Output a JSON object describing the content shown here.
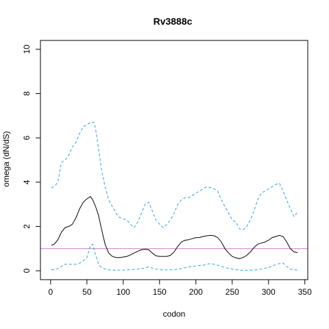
{
  "chart_data": {
    "type": "line",
    "title": "Rv3888c",
    "xlabel": "codon",
    "ylabel": "omega (dN/dS)",
    "xlim": [
      -14,
      354
    ],
    "ylim": [
      -0.4,
      10.4
    ],
    "xticks": [
      0,
      50,
      100,
      150,
      200,
      250,
      300,
      350
    ],
    "yticks": [
      0,
      2,
      4,
      6,
      8,
      10
    ],
    "grid": false,
    "legend": "none",
    "reference_line": {
      "y": 1,
      "color": "#cc79c8"
    },
    "series": [
      {
        "style": "solid",
        "color": "#000000",
        "x": [
          1,
          5,
          10,
          15,
          20,
          25,
          30,
          35,
          40,
          45,
          50,
          55,
          58,
          62,
          66,
          70,
          75,
          80,
          85,
          90,
          95,
          100,
          105,
          110,
          115,
          120,
          125,
          130,
          135,
          140,
          145,
          150,
          155,
          160,
          165,
          170,
          175,
          180,
          185,
          190,
          195,
          200,
          205,
          210,
          215,
          220,
          225,
          230,
          235,
          240,
          245,
          250,
          255,
          260,
          265,
          270,
          275,
          280,
          285,
          290,
          295,
          300,
          305,
          310,
          315,
          320,
          325,
          330,
          335,
          340
        ],
        "y": [
          1.15,
          1.2,
          1.4,
          1.75,
          1.95,
          2.0,
          2.1,
          2.4,
          2.8,
          3.1,
          3.25,
          3.35,
          3.2,
          2.9,
          2.5,
          1.9,
          1.2,
          0.8,
          0.65,
          0.6,
          0.6,
          0.62,
          0.65,
          0.72,
          0.8,
          0.88,
          0.95,
          0.97,
          0.95,
          0.8,
          0.68,
          0.65,
          0.65,
          0.65,
          0.7,
          0.85,
          1.1,
          1.3,
          1.38,
          1.4,
          1.45,
          1.5,
          1.5,
          1.55,
          1.58,
          1.6,
          1.58,
          1.5,
          1.3,
          1.0,
          0.8,
          0.65,
          0.58,
          0.55,
          0.6,
          0.7,
          0.85,
          1.05,
          1.2,
          1.25,
          1.3,
          1.38,
          1.5,
          1.55,
          1.6,
          1.55,
          1.3,
          1.0,
          0.85,
          0.82
        ]
      },
      {
        "style": "dashed",
        "color": "#29a3dd",
        "x": [
          1,
          5,
          10,
          15,
          20,
          25,
          30,
          35,
          40,
          45,
          50,
          55,
          60,
          63,
          66,
          70,
          75,
          80,
          85,
          90,
          95,
          100,
          105,
          110,
          115,
          120,
          125,
          130,
          135,
          140,
          145,
          150,
          155,
          160,
          165,
          170,
          175,
          180,
          185,
          190,
          195,
          200,
          205,
          210,
          215,
          220,
          225,
          230,
          235,
          240,
          245,
          250,
          255,
          260,
          265,
          270,
          275,
          280,
          285,
          290,
          295,
          300,
          305,
          310,
          315,
          320,
          325,
          330,
          335,
          340
        ],
        "y": [
          3.75,
          3.8,
          4.0,
          4.9,
          5.0,
          5.2,
          5.6,
          5.8,
          6.2,
          6.5,
          6.6,
          6.7,
          6.7,
          6.2,
          5.5,
          4.6,
          3.8,
          3.2,
          2.9,
          2.6,
          2.4,
          2.35,
          2.3,
          2.1,
          1.95,
          2.2,
          2.6,
          3.0,
          3.1,
          2.7,
          2.3,
          2.1,
          1.95,
          2.1,
          2.3,
          2.6,
          3.0,
          3.2,
          3.3,
          3.3,
          3.4,
          3.5,
          3.6,
          3.7,
          3.8,
          3.75,
          3.7,
          3.6,
          3.2,
          2.9,
          2.6,
          2.3,
          2.2,
          1.9,
          1.85,
          2.0,
          2.3,
          2.7,
          3.2,
          3.5,
          3.6,
          3.7,
          3.8,
          3.9,
          3.95,
          3.6,
          3.2,
          2.8,
          2.45,
          2.65
        ]
      },
      {
        "style": "dashed",
        "color": "#29a3dd",
        "x": [
          1,
          5,
          10,
          15,
          20,
          25,
          30,
          35,
          40,
          45,
          50,
          55,
          58,
          62,
          66,
          70,
          75,
          80,
          90,
          100,
          110,
          120,
          130,
          135,
          140,
          145,
          150,
          160,
          170,
          180,
          190,
          200,
          210,
          215,
          220,
          225,
          230,
          240,
          250,
          260,
          270,
          280,
          290,
          300,
          305,
          310,
          315,
          320,
          325,
          330,
          335,
          340
        ],
        "y": [
          0.05,
          0.05,
          0.1,
          0.2,
          0.3,
          0.3,
          0.3,
          0.3,
          0.35,
          0.45,
          0.6,
          1.15,
          1.2,
          0.7,
          0.3,
          0.15,
          0.08,
          0.04,
          0.03,
          0.03,
          0.05,
          0.08,
          0.12,
          0.18,
          0.12,
          0.08,
          0.05,
          0.04,
          0.05,
          0.1,
          0.18,
          0.22,
          0.25,
          0.3,
          0.32,
          0.3,
          0.25,
          0.15,
          0.08,
          0.03,
          0.02,
          0.03,
          0.08,
          0.15,
          0.2,
          0.28,
          0.32,
          0.35,
          0.2,
          0.08,
          0.05,
          0.03
        ]
      }
    ]
  }
}
